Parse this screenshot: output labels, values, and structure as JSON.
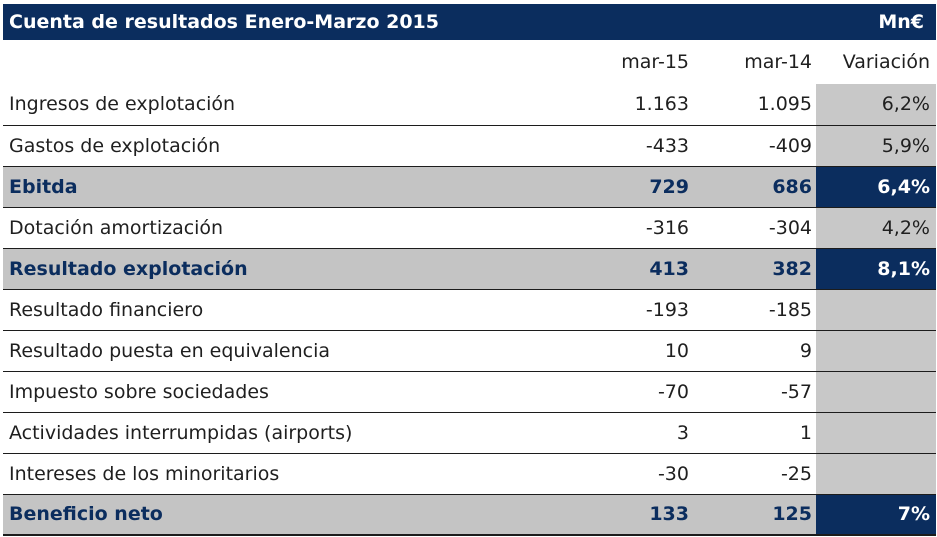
{
  "title": "Cuenta de resultados Enero-Marzo 2015",
  "unit": "Mn€",
  "columns": [
    "mar-15",
    "mar-14",
    "Variación"
  ],
  "rows": [
    {
      "label": "Ingresos de explotación",
      "c1": "1.163",
      "c2": "1.095",
      "var": "6,2%",
      "bold": false
    },
    {
      "label": "Gastos de explotación",
      "c1": "-433",
      "c2": "-409",
      "var": "5,9%",
      "bold": false
    },
    {
      "label": "Ebitda",
      "c1": "729",
      "c2": "686",
      "var": "6,4%",
      "bold": true
    },
    {
      "label": "Dotación amortización",
      "c1": "-316",
      "c2": "-304",
      "var": "4,2%",
      "bold": false
    },
    {
      "label": "Resultado explotación",
      "c1": "413",
      "c2": "382",
      "var": "8,1%",
      "bold": true
    },
    {
      "label": "Resultado financiero",
      "c1": "-193",
      "c2": "-185",
      "var": "",
      "bold": false
    },
    {
      "label": "Resultado puesta en equivalencia",
      "c1": "10",
      "c2": "9",
      "var": "",
      "bold": false
    },
    {
      "label": "Impuesto sobre sociedades",
      "c1": "-70",
      "c2": "-57",
      "var": "",
      "bold": false
    },
    {
      "label": "Actividades interrumpidas (airports)",
      "c1": "3",
      "c2": "1",
      "var": "",
      "bold": false
    },
    {
      "label": "Intereses de los minoritarios",
      "c1": "-30",
      "c2": "-25",
      "var": "",
      "bold": false
    },
    {
      "label": "Beneficio neto",
      "c1": "133",
      "c2": "125",
      "var": "7%",
      "bold": true
    }
  ]
}
